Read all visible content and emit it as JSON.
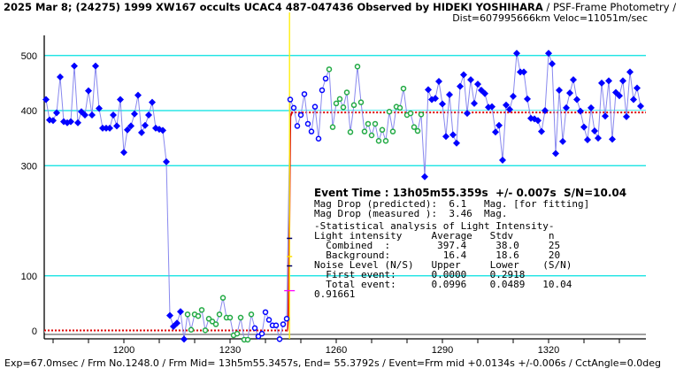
{
  "header": {
    "title_bold": "2025 Mar 8; (24275) 1999 XW167 occults UCAC4 487-047436 Observed by HIDEKI YOSHIHARA",
    "title_rest": " / PSF-Frame Photometry /",
    "subtitle": "Dist=607995666km Veloc=11051m/sec"
  },
  "stats": {
    "event_time": "Event Time : 13h05m55.359s  +/- 0.007s  S/N=10.04",
    "lines": [
      "Mag Drop (predicted):  6.1   Mag. [for fitting]",
      "Mag Drop (measured ):  3.46  Mag.",
      "-Statistical analysis of Light Intensity-",
      "Light intensity     Average   Stdv      n",
      "  Combined  :        397.4     38.0     25",
      "  Background:         16.4     18.6     20",
      "Noise Level (N/S)   Upper     Lower    (S/N)",
      "  First event:      0.0000    0.2918",
      "  Total event:      0.0996    0.0489   10.04",
      "0.91661"
    ]
  },
  "footer": "Exp=67.0msec / Frm No.1248.0 / Frm Mid= 13h5m55.3457s,  End= 55.3792s / Event=Frm mid +0.0134s +/-0.006s / CctAngle=0.0deg",
  "colors": {
    "grid": "#00e0e0",
    "data": "#0000ff",
    "fit_points": "#22aa44",
    "line": "#8888ee",
    "model": "#dd0000",
    "event": "#ffee00"
  },
  "chart_data": {
    "type": "line",
    "title": "2025 Mar 8; (24275) 1999 XW167 occults UCAC4 487-047436",
    "xlabel": "",
    "ylabel": "",
    "xlim": [
      1177.5,
      1347
    ],
    "ylim": [
      -20,
      540
    ],
    "yticks": [
      0,
      100,
      300,
      400,
      500
    ],
    "xticks": [
      1200,
      1230,
      1260,
      1290,
      1320
    ],
    "grid": true,
    "event_frame": 1246.8,
    "model_levels": {
      "background": 0,
      "combined": 397.4
    },
    "series": [
      {
        "name": "pre-event (blue filled)",
        "x": [
          1178,
          1179,
          1180,
          1181,
          1182,
          1183,
          1184,
          1185,
          1186,
          1187,
          1188,
          1189,
          1190,
          1191,
          1192,
          1193,
          1194,
          1195,
          1196,
          1197,
          1198,
          1199,
          1200,
          1201,
          1202,
          1203,
          1204,
          1205,
          1206,
          1207,
          1208,
          1209,
          1210,
          1211,
          1212
        ],
        "values": [
          420,
          383,
          382,
          396,
          461,
          380,
          378,
          380,
          481,
          378,
          398,
          392,
          436,
          392,
          481,
          404,
          368,
          368,
          368,
          392,
          372,
          420,
          324,
          365,
          372,
          394,
          428,
          360,
          373,
          392,
          415,
          368,
          366,
          364,
          307
        ]
      },
      {
        "name": "occultation (blue filled)",
        "x": [
          1213,
          1214,
          1215,
          1216,
          1217
        ],
        "values": [
          28,
          8,
          14,
          35,
          -15
        ]
      },
      {
        "name": "fit (green open)",
        "x": [
          1218,
          1219,
          1220,
          1221,
          1222,
          1223,
          1224,
          1225,
          1226,
          1227,
          1228,
          1229,
          1230,
          1231,
          1232,
          1233,
          1234,
          1235,
          1236
        ],
        "values": [
          30,
          2,
          30,
          27,
          38,
          1,
          22,
          17,
          12,
          30,
          60,
          24,
          24,
          -8,
          -5,
          24,
          -16,
          -16,
          30
        ]
      },
      {
        "name": "occultation (blue open)",
        "x": [
          1237,
          1238,
          1239,
          1240,
          1241,
          1242,
          1243,
          1244,
          1245,
          1246
        ],
        "values": [
          5,
          -10,
          -5,
          34,
          20,
          10,
          10,
          -15,
          12,
          22
        ]
      },
      {
        "name": "recovery (blue open)",
        "x": [
          1247,
          1248,
          1249,
          1250,
          1251,
          1252,
          1253,
          1254,
          1255,
          1256,
          1257
        ],
        "values": [
          420,
          405,
          372,
          392,
          430,
          376,
          362,
          407,
          349,
          437,
          458
        ]
      },
      {
        "name": "fit (green open)",
        "x": [
          1258,
          1259,
          1260,
          1261,
          1262,
          1263,
          1264,
          1265,
          1266,
          1267,
          1268,
          1269,
          1270,
          1271,
          1272,
          1273,
          1274,
          1275,
          1276,
          1277,
          1278,
          1279,
          1280,
          1281,
          1282,
          1283,
          1284
        ],
        "values": [
          475,
          370,
          413,
          421,
          406,
          433,
          361,
          410,
          480,
          415,
          362,
          376,
          355,
          376,
          345,
          365,
          345,
          398,
          362,
          407,
          405,
          440,
          392,
          395,
          370,
          363,
          393
        ]
      },
      {
        "name": "post-event (blue filled)",
        "x": [
          1285,
          1286,
          1287,
          1288,
          1289,
          1290,
          1291,
          1292,
          1293,
          1294,
          1295,
          1296,
          1297,
          1298,
          1299,
          1300,
          1301,
          1302,
          1303,
          1304,
          1305,
          1306,
          1307,
          1308,
          1309,
          1310,
          1311,
          1312,
          1313,
          1314,
          1315,
          1316,
          1317,
          1318,
          1319,
          1320,
          1321,
          1322,
          1323,
          1324,
          1325,
          1326,
          1327,
          1328,
          1329,
          1330,
          1331,
          1332,
          1333,
          1334,
          1335,
          1336,
          1337,
          1338,
          1339,
          1340,
          1341,
          1342,
          1343,
          1344,
          1345,
          1346
        ],
        "values": [
          280,
          438,
          420,
          422,
          453,
          412,
          353,
          429,
          356,
          341,
          444,
          465,
          395,
          456,
          413,
          448,
          437,
          431,
          406,
          407,
          361,
          373,
          310,
          410,
          402,
          426,
          504,
          470,
          470,
          421,
          386,
          385,
          382,
          362,
          400,
          504,
          485,
          322,
          437,
          344,
          405,
          432,
          456,
          420,
          399,
          370,
          347,
          405,
          363,
          350,
          450,
          390,
          454,
          348,
          433,
          427,
          454,
          389,
          470,
          420,
          441,
          408
        ]
      }
    ]
  }
}
